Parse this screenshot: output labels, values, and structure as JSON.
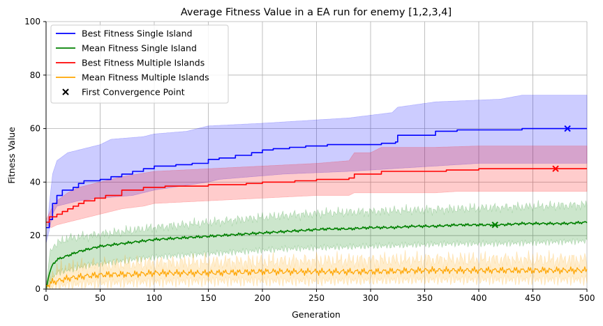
{
  "chart_data": {
    "type": "line",
    "title": "Average Fitness Value in a EA run for enemy [1,2,3,4]",
    "xlabel": "Generation",
    "ylabel": "Fitness Value",
    "xlim": [
      0,
      500
    ],
    "ylim": [
      0,
      100
    ],
    "xticks": [
      0,
      50,
      100,
      150,
      200,
      250,
      300,
      350,
      400,
      450,
      500
    ],
    "yticks": [
      0,
      20,
      40,
      60,
      80,
      100
    ],
    "grid": true,
    "legend_position": "top-left",
    "series": [
      {
        "name": "Best Fitness Single Island",
        "color": "#0000ff",
        "band_color": "#0000ff",
        "points": [
          [
            0,
            23
          ],
          [
            3,
            26
          ],
          [
            6,
            32
          ],
          [
            10,
            35
          ],
          [
            15,
            37
          ],
          [
            25,
            38
          ],
          [
            30,
            39.5
          ],
          [
            35,
            40.5
          ],
          [
            50,
            41
          ],
          [
            60,
            42
          ],
          [
            70,
            43
          ],
          [
            80,
            44
          ],
          [
            90,
            45
          ],
          [
            100,
            46
          ],
          [
            110,
            46
          ],
          [
            120,
            46.5
          ],
          [
            135,
            47
          ],
          [
            150,
            48.5
          ],
          [
            160,
            49
          ],
          [
            175,
            50
          ],
          [
            190,
            51
          ],
          [
            200,
            52
          ],
          [
            210,
            52.5
          ],
          [
            225,
            53
          ],
          [
            240,
            53.5
          ],
          [
            260,
            54
          ],
          [
            280,
            54
          ],
          [
            310,
            54.5
          ],
          [
            323,
            55
          ],
          [
            325,
            57.5
          ],
          [
            340,
            57.5
          ],
          [
            360,
            59
          ],
          [
            380,
            59.5
          ],
          [
            400,
            59.5
          ],
          [
            420,
            59.5
          ],
          [
            440,
            60
          ],
          [
            460,
            60
          ],
          [
            480,
            60
          ],
          [
            500,
            60
          ]
        ],
        "upper": [
          [
            0,
            17
          ],
          [
            3,
            32
          ],
          [
            6,
            43
          ],
          [
            10,
            48
          ],
          [
            20,
            51
          ],
          [
            30,
            52
          ],
          [
            50,
            54
          ],
          [
            60,
            56
          ],
          [
            90,
            57
          ],
          [
            100,
            58
          ],
          [
            130,
            59
          ],
          [
            150,
            61
          ],
          [
            200,
            62
          ],
          [
            240,
            63
          ],
          [
            280,
            64
          ],
          [
            320,
            66
          ],
          [
            325,
            68
          ],
          [
            360,
            70
          ],
          [
            420,
            71
          ],
          [
            440,
            72.5
          ],
          [
            500,
            72.5
          ]
        ],
        "lower": [
          [
            0,
            17
          ],
          [
            3,
            22
          ],
          [
            6,
            28
          ],
          [
            10,
            31
          ],
          [
            20,
            32
          ],
          [
            30,
            33
          ],
          [
            50,
            34
          ],
          [
            80,
            35
          ],
          [
            100,
            37
          ],
          [
            150,
            40
          ],
          [
            160,
            41
          ],
          [
            220,
            43
          ],
          [
            280,
            44
          ],
          [
            320,
            45
          ],
          [
            360,
            46
          ],
          [
            400,
            47
          ],
          [
            440,
            47
          ],
          [
            500,
            47
          ]
        ]
      },
      {
        "name": "Mean Fitness Single Island",
        "color": "#008000",
        "band_color": "#008000",
        "points": [
          [
            0,
            0
          ],
          [
            3,
            6
          ],
          [
            6,
            9
          ],
          [
            10,
            11
          ],
          [
            20,
            12.5
          ],
          [
            30,
            14
          ],
          [
            40,
            15
          ],
          [
            50,
            16
          ],
          [
            60,
            16.5
          ],
          [
            70,
            17
          ],
          [
            80,
            17.5
          ],
          [
            90,
            18
          ],
          [
            100,
            18.5
          ],
          [
            120,
            19
          ],
          [
            140,
            19.5
          ],
          [
            160,
            20
          ],
          [
            180,
            20.5
          ],
          [
            200,
            21
          ],
          [
            220,
            21.5
          ],
          [
            240,
            22
          ],
          [
            260,
            22.5
          ],
          [
            280,
            22.5
          ],
          [
            300,
            23
          ],
          [
            320,
            23
          ],
          [
            340,
            23.5
          ],
          [
            360,
            23.5
          ],
          [
            380,
            24
          ],
          [
            400,
            24
          ],
          [
            420,
            24
          ],
          [
            440,
            24.5
          ],
          [
            460,
            24.5
          ],
          [
            480,
            24.5
          ],
          [
            500,
            25
          ]
        ],
        "upper": [
          [
            0,
            0
          ],
          [
            3,
            12
          ],
          [
            6,
            16
          ],
          [
            10,
            17
          ],
          [
            20,
            19
          ],
          [
            40,
            20
          ],
          [
            60,
            21
          ],
          [
            80,
            22
          ],
          [
            100,
            23
          ],
          [
            140,
            24.5
          ],
          [
            180,
            26
          ],
          [
            220,
            27.5
          ],
          [
            260,
            28.5
          ],
          [
            300,
            29
          ],
          [
            340,
            29.5
          ],
          [
            380,
            30
          ],
          [
            420,
            30.5
          ],
          [
            460,
            31
          ],
          [
            500,
            31.5
          ]
        ],
        "lower": [
          [
            0,
            0
          ],
          [
            3,
            2
          ],
          [
            6,
            4
          ],
          [
            10,
            6
          ],
          [
            20,
            7
          ],
          [
            40,
            9
          ],
          [
            60,
            10
          ],
          [
            80,
            11
          ],
          [
            100,
            12
          ],
          [
            140,
            13
          ],
          [
            180,
            14
          ],
          [
            220,
            15
          ],
          [
            260,
            15.5
          ],
          [
            300,
            16
          ],
          [
            340,
            16.5
          ],
          [
            380,
            17
          ],
          [
            420,
            17
          ],
          [
            460,
            17.5
          ],
          [
            500,
            18
          ]
        ]
      },
      {
        "name": "Best Fitness Multiple Islands",
        "color": "#ff0000",
        "band_color": "#ff0000",
        "points": [
          [
            0,
            25
          ],
          [
            3,
            27
          ],
          [
            10,
            28
          ],
          [
            15,
            29
          ],
          [
            20,
            30
          ],
          [
            25,
            31
          ],
          [
            30,
            32
          ],
          [
            35,
            33
          ],
          [
            45,
            34
          ],
          [
            55,
            35
          ],
          [
            70,
            37
          ],
          [
            90,
            38
          ],
          [
            110,
            38.5
          ],
          [
            150,
            39
          ],
          [
            185,
            39.5
          ],
          [
            200,
            40
          ],
          [
            230,
            40.5
          ],
          [
            250,
            41
          ],
          [
            280,
            41.5
          ],
          [
            285,
            43
          ],
          [
            310,
            44
          ],
          [
            360,
            44
          ],
          [
            370,
            44.5
          ],
          [
            400,
            45
          ],
          [
            420,
            45
          ],
          [
            440,
            45
          ],
          [
            460,
            45
          ],
          [
            500,
            45
          ]
        ],
        "upper": [
          [
            0,
            26
          ],
          [
            5,
            30
          ],
          [
            10,
            33
          ],
          [
            20,
            36
          ],
          [
            30,
            38
          ],
          [
            50,
            40
          ],
          [
            70,
            42
          ],
          [
            100,
            44
          ],
          [
            150,
            45
          ],
          [
            200,
            46
          ],
          [
            250,
            47
          ],
          [
            280,
            48
          ],
          [
            285,
            51
          ],
          [
            300,
            51
          ],
          [
            310,
            53
          ],
          [
            360,
            53
          ],
          [
            400,
            53.5
          ],
          [
            500,
            53.5
          ]
        ],
        "lower": [
          [
            0,
            24
          ],
          [
            5,
            23
          ],
          [
            10,
            24
          ],
          [
            20,
            25
          ],
          [
            30,
            26
          ],
          [
            50,
            28
          ],
          [
            70,
            30
          ],
          [
            90,
            31
          ],
          [
            100,
            32
          ],
          [
            150,
            33
          ],
          [
            200,
            34
          ],
          [
            250,
            35
          ],
          [
            280,
            35
          ],
          [
            285,
            36
          ],
          [
            360,
            36
          ],
          [
            380,
            36.5
          ],
          [
            500,
            36.5
          ]
        ]
      },
      {
        "name": "Mean Fitness Multiple Islands",
        "color": "#ffa500",
        "band_color": "#ffa500",
        "points": [
          [
            0,
            1
          ],
          [
            5,
            2.5
          ],
          [
            10,
            3
          ],
          [
            20,
            4
          ],
          [
            30,
            4.5
          ],
          [
            40,
            5
          ],
          [
            60,
            5.5
          ],
          [
            80,
            5.5
          ],
          [
            100,
            6
          ],
          [
            150,
            6
          ],
          [
            200,
            6.5
          ],
          [
            250,
            6.5
          ],
          [
            300,
            6.5
          ],
          [
            350,
            7
          ],
          [
            400,
            7
          ],
          [
            450,
            7
          ],
          [
            500,
            7
          ]
        ],
        "upper": [
          [
            0,
            2
          ],
          [
            5,
            5
          ],
          [
            10,
            7
          ],
          [
            20,
            8
          ],
          [
            40,
            9
          ],
          [
            80,
            9.5
          ],
          [
            150,
            10
          ],
          [
            250,
            10.5
          ],
          [
            350,
            11
          ],
          [
            500,
            11
          ]
        ],
        "lower": [
          [
            0,
            0
          ],
          [
            5,
            0.5
          ],
          [
            10,
            1
          ],
          [
            20,
            1.5
          ],
          [
            40,
            2
          ],
          [
            80,
            2.5
          ],
          [
            150,
            3
          ],
          [
            250,
            3
          ],
          [
            350,
            3.5
          ],
          [
            500,
            3.5
          ]
        ]
      }
    ],
    "convergence_points": {
      "name": "First Convergence Point",
      "marker_color": "#000000",
      "points": [
        {
          "series": "Best Fitness Single Island",
          "x": 482,
          "y": 60,
          "color": "#0000ff"
        },
        {
          "series": "Best Fitness Multiple Islands",
          "x": 471,
          "y": 45,
          "color": "#ff0000"
        },
        {
          "series": "Mean Fitness Single Island",
          "x": 415,
          "y": 24,
          "color": "#008000"
        }
      ]
    }
  }
}
